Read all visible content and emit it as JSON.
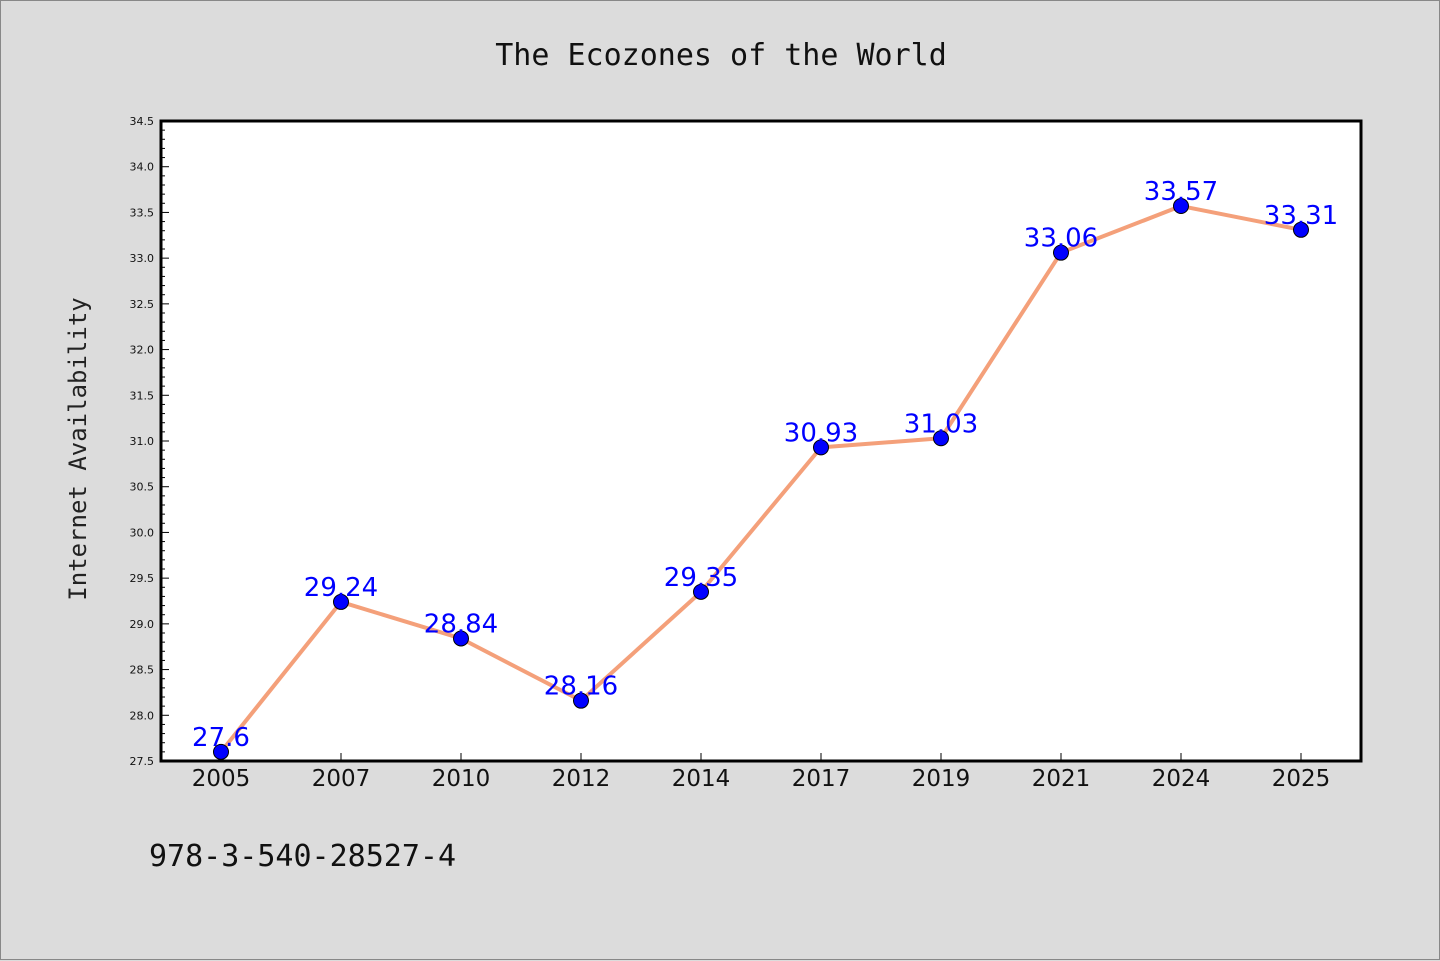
{
  "chart_data": {
    "type": "line",
    "title": "The Ecozones of the World",
    "xlabel": "",
    "ylabel": "Internet Availability",
    "categories": [
      "2005",
      "2007",
      "2010",
      "2012",
      "2014",
      "2017",
      "2019",
      "2021",
      "2024",
      "2025"
    ],
    "series": [
      {
        "values": [
          27.6,
          29.24,
          28.84,
          28.16,
          29.35,
          30.93,
          31.03,
          33.06,
          33.57,
          33.31
        ],
        "line_color": "#f4a07a",
        "marker_color": "#0000ff"
      }
    ],
    "data_labels": [
      "27.6",
      "29.24",
      "28.84",
      "28.16",
      "29.35",
      "30.93",
      "31.03",
      "33.06",
      "33.57",
      "33.31"
    ],
    "ylim": [
      27.5,
      34.5
    ],
    "yticks": [
      "27.5",
      "28.0",
      "28.5",
      "29.0",
      "29.5",
      "30.0",
      "30.5",
      "31.0",
      "31.5",
      "32.0",
      "32.5",
      "33.0",
      "33.5",
      "34.0",
      "34.5"
    ],
    "grid": false,
    "legend": "none"
  },
  "footer": {
    "text": "978-3-540-28527-4"
  },
  "colors": {
    "background": "#dcdcdc",
    "plot_area": "#ffffff",
    "line": "#f4a07a",
    "marker": "#0000ff",
    "data_label": "#0000ff"
  }
}
